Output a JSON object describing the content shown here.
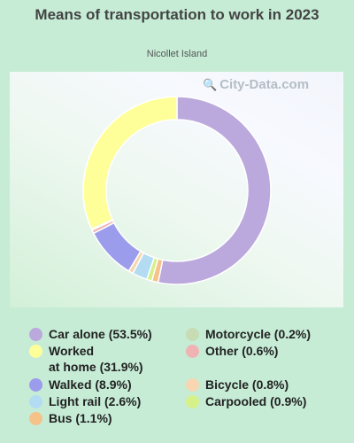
{
  "chart_data": {
    "type": "pie",
    "variant": "donut",
    "title": "Means of transportation to work in 2023",
    "subtitle": "Nicollet Island",
    "watermark": "City-Data.com",
    "slices": [
      {
        "label": "Car alone",
        "value_label": "Car alone (53.5%)",
        "value": 53.5,
        "color": "#bba8dc"
      },
      {
        "label": "Bus",
        "value_label": "Bus (1.1%)",
        "value": 1.1,
        "color": "#f5c28a"
      },
      {
        "label": "Carpooled",
        "value_label": "Carpooled (0.9%)",
        "value": 0.9,
        "color": "#d6f08a"
      },
      {
        "label": "Light rail",
        "value_label": "Light rail (2.6%)",
        "value": 2.6,
        "color": "#b3dcf2"
      },
      {
        "label": "Bicycle",
        "value_label": "Bicycle (0.8%)",
        "value": 0.8,
        "color": "#f7d6b1"
      },
      {
        "label": "Walked",
        "value_label": "Walked (8.9%)",
        "value": 8.9,
        "color": "#9c9cec"
      },
      {
        "label": "Other",
        "value_label": "Other (0.6%)",
        "value": 0.6,
        "color": "#f0b3b3"
      },
      {
        "label": "Motorcycle",
        "value_label": "Motorcycle (0.2%)",
        "value": 0.2,
        "color": "#c8dcb4"
      },
      {
        "label": "Worked at home",
        "value_label": "Worked at home (31.9%)",
        "value": 31.9,
        "color": "#ffff99"
      }
    ],
    "legend": [
      {
        "line1": "Car alone (53.5%)",
        "line2": "",
        "color": "#bba8dc"
      },
      {
        "line1": "Worked",
        "line2": "at home (31.9%)",
        "color": "#ffff99"
      },
      {
        "line1": "Walked (8.9%)",
        "line2": "",
        "color": "#9c9cec"
      },
      {
        "line1": "Light rail (2.6%)",
        "line2": "",
        "color": "#b3dcf2"
      },
      {
        "line1": "Bus (1.1%)",
        "line2": "",
        "color": "#f5c28a"
      },
      {
        "line1": "Motorcycle (0.2%)",
        "line2": "",
        "color": "#c8dcb4"
      },
      {
        "line1": "Other (0.6%)",
        "line2": "",
        "color": "#f0b3b3"
      },
      {
        "line1": "Bicycle (0.8%)",
        "line2": "",
        "color": "#f7d6b1"
      },
      {
        "line1": "Carpooled (0.9%)",
        "line2": "",
        "color": "#d6f08a"
      }
    ]
  }
}
